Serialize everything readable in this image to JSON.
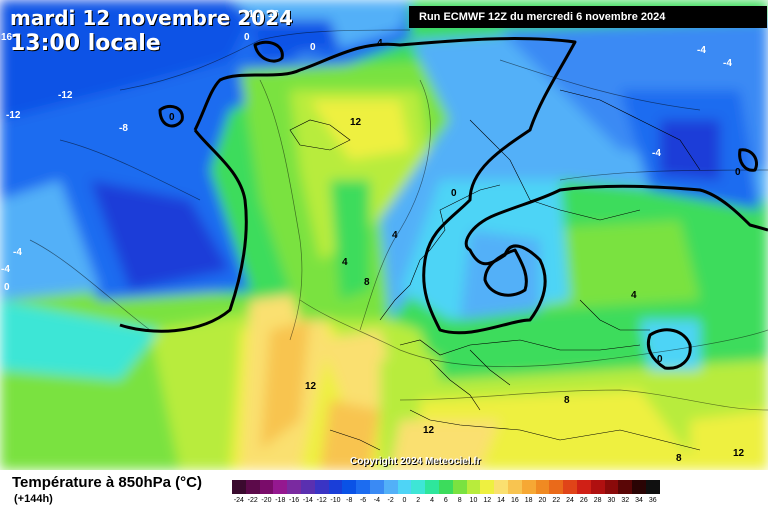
{
  "header": {
    "date": "mardi 12 novembre 2024",
    "time": "13:00 locale",
    "run": "Run ECMWF 12Z du mercredi 6 novembre 2024"
  },
  "copyright": "Copyright 2024 Meteociel.fr",
  "legend": {
    "title": "Température à 850hPa (°C)",
    "subtitle": "(+144h)",
    "scale": [
      {
        "label": "-24",
        "color": "#3a0a2e"
      },
      {
        "label": "-22",
        "color": "#5c0a4a"
      },
      {
        "label": "-20",
        "color": "#7a0c6a"
      },
      {
        "label": "-18",
        "color": "#951890"
      },
      {
        "label": "-16",
        "color": "#7a2aa0"
      },
      {
        "label": "-14",
        "color": "#5a30b0"
      },
      {
        "label": "-12",
        "color": "#3a34c4"
      },
      {
        "label": "-10",
        "color": "#1a3ed8"
      },
      {
        "label": "-8",
        "color": "#0a52e6"
      },
      {
        "label": "-6",
        "color": "#1c6cf0"
      },
      {
        "label": "-4",
        "color": "#3a8af4"
      },
      {
        "label": "-2",
        "color": "#52b0f8"
      },
      {
        "label": "0",
        "color": "#4ed4f6"
      },
      {
        "label": "2",
        "color": "#3ee6d6"
      },
      {
        "label": "4",
        "color": "#2ee69c"
      },
      {
        "label": "6",
        "color": "#3cdc5c"
      },
      {
        "label": "8",
        "color": "#7ae240"
      },
      {
        "label": "10",
        "color": "#b8ec3c"
      },
      {
        "label": "12",
        "color": "#eef040"
      },
      {
        "label": "14",
        "color": "#fae070"
      },
      {
        "label": "16",
        "color": "#f8c450"
      },
      {
        "label": "18",
        "color": "#f6a834"
      },
      {
        "label": "20",
        "color": "#f08a22"
      },
      {
        "label": "22",
        "color": "#ea6a1a"
      },
      {
        "label": "24",
        "color": "#e04418"
      },
      {
        "label": "26",
        "color": "#d02016"
      },
      {
        "label": "28",
        "color": "#b01010"
      },
      {
        "label": "30",
        "color": "#8a0a0a"
      },
      {
        "label": "32",
        "color": "#5a0606"
      },
      {
        "label": "34",
        "color": "#2a0404"
      },
      {
        "label": "36",
        "color": "#101010"
      }
    ]
  },
  "contour_labels": [
    {
      "text": "-12",
      "color": "#ffffff"
    },
    {
      "text": "16",
      "color": "#ffffff"
    },
    {
      "text": "0",
      "color": "#ffffff"
    },
    {
      "text": "0",
      "color": "#ffffff"
    },
    {
      "text": "16",
      "color": "#ffffff"
    },
    {
      "text": "-12",
      "color": "#ffffff"
    },
    {
      "text": "-12",
      "color": "#ffffff"
    },
    {
      "text": "-8",
      "color": "#ffffff"
    },
    {
      "text": "0",
      "color": "#000000"
    },
    {
      "text": "4",
      "color": "#000000"
    },
    {
      "text": "12",
      "color": "#000000"
    },
    {
      "text": "4",
      "color": "#000000"
    },
    {
      "text": "8",
      "color": "#000000"
    },
    {
      "text": "0",
      "color": "#000000"
    },
    {
      "text": "-4",
      "color": "#ffffff"
    },
    {
      "text": "-4",
      "color": "#ffffff"
    },
    {
      "text": "-4",
      "color": "#ffffff"
    },
    {
      "text": "0",
      "color": "#000000"
    },
    {
      "text": "-4",
      "color": "#ffffff"
    },
    {
      "text": "-4",
      "color": "#ffffff"
    },
    {
      "text": "0",
      "color": "#ffffff"
    },
    {
      "text": "4",
      "color": "#000000"
    },
    {
      "text": "4",
      "color": "#000000"
    },
    {
      "text": "0",
      "color": "#000000"
    },
    {
      "text": "12",
      "color": "#000000"
    },
    {
      "text": "8",
      "color": "#000000"
    },
    {
      "text": "12",
      "color": "#000000"
    },
    {
      "text": "8",
      "color": "#000000"
    },
    {
      "text": "12",
      "color": "#000000"
    }
  ]
}
